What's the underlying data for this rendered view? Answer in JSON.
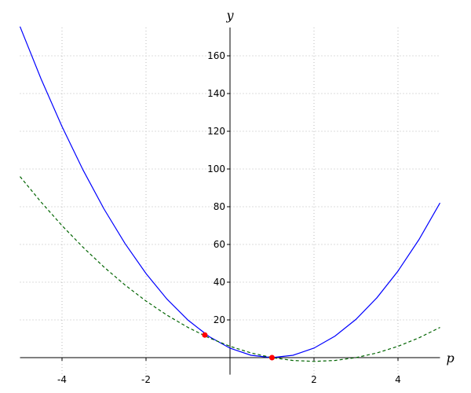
{
  "chart_data": {
    "type": "line",
    "xlabel": "p",
    "ylabel": "y",
    "xlim": [
      -5,
      5
    ],
    "ylim": [
      -9,
      175
    ],
    "xticks": [
      -4,
      -2,
      2,
      4
    ],
    "yticks": [
      20,
      40,
      60,
      80,
      100,
      120,
      140,
      160
    ],
    "grid": true,
    "x": [
      -5,
      -4.5,
      -4,
      -3.5,
      -3,
      -2.5,
      -2,
      -1.5,
      -1,
      -0.5,
      0,
      0.5,
      1,
      1.5,
      2,
      2.5,
      3,
      3.5,
      4,
      4.5,
      5
    ],
    "series": [
      {
        "color": "#0000ff",
        "line_style": "solid",
        "values": [
          175.5,
          147.8,
          122.5,
          99.5,
          78.8,
          60.5,
          44.6,
          31.0,
          19.9,
          11.2,
          5,
          1.25,
          0,
          1.26,
          5.05,
          11.4,
          20.3,
          31.8,
          45.9,
          62.6,
          82
        ]
      },
      {
        "color": "#006400",
        "line_style": "dashed",
        "values": [
          96,
          82.5,
          70,
          58.5,
          48,
          38.5,
          30,
          22.5,
          16,
          10.5,
          6,
          2.5,
          0,
          -1.5,
          -2,
          -1.5,
          0,
          2.5,
          6,
          10.5,
          16
        ]
      }
    ],
    "points": {
      "color": "#ff0000",
      "x": [
        -0.6,
        1
      ],
      "y": [
        12,
        0
      ]
    }
  }
}
